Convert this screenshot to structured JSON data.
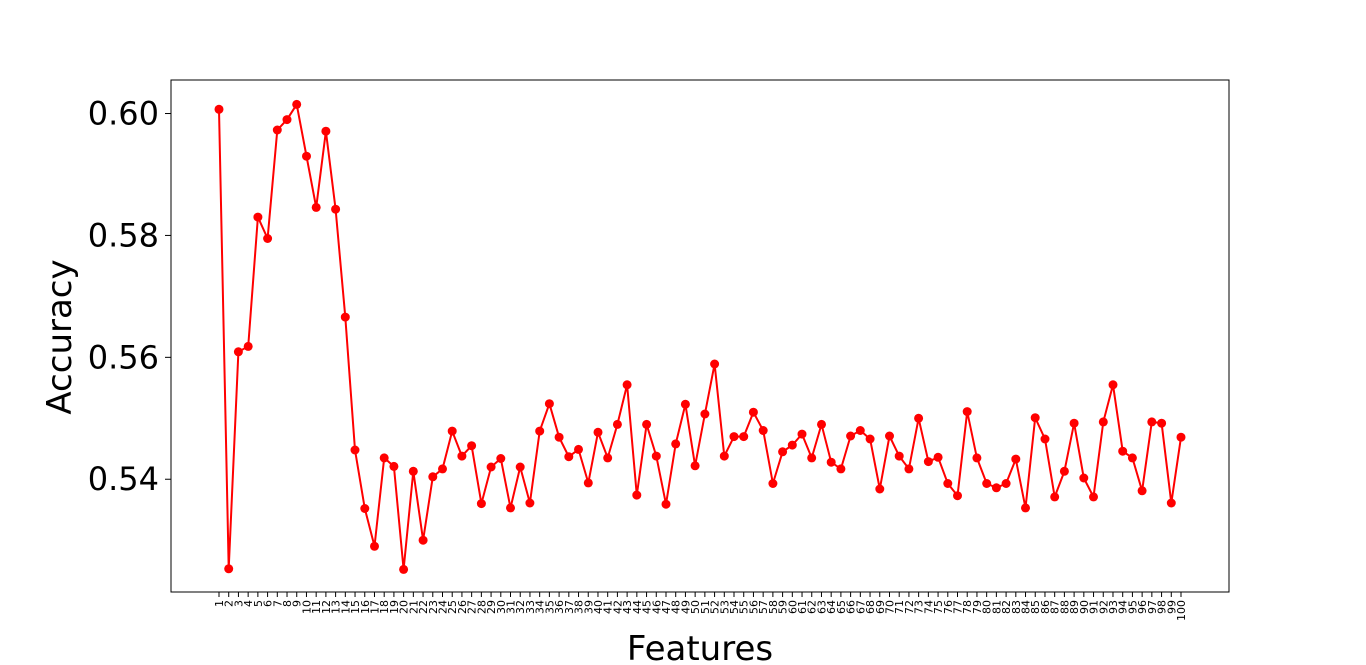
{
  "chart_data": {
    "type": "line",
    "xlabel": "Features",
    "ylabel": "Accuracy",
    "title": "",
    "ylim": [
      0.5215,
      0.6055
    ],
    "yticks": [
      "0.54",
      "0.56",
      "0.58",
      "0.60"
    ],
    "grid": false,
    "legend": "none",
    "line_color": "#ff0000",
    "marker": "circle",
    "series": [
      {
        "x": [
          1,
          2,
          3,
          4,
          5,
          6,
          7,
          8,
          9,
          10,
          11,
          12,
          13,
          14,
          15,
          16,
          17,
          18,
          19,
          20,
          21,
          22,
          23,
          24,
          25,
          26,
          27,
          28,
          29,
          30,
          31,
          32,
          33,
          34,
          35,
          36,
          37,
          38,
          39,
          40,
          41,
          42,
          43,
          44,
          45,
          46,
          47,
          48,
          49,
          50,
          51,
          52,
          53,
          54,
          55,
          56,
          57,
          58,
          59,
          60,
          61,
          62,
          63,
          64,
          65,
          66,
          67,
          68,
          69,
          70,
          71,
          72,
          73,
          74,
          75,
          76,
          77,
          78,
          79,
          80,
          81,
          82,
          83,
          84,
          85,
          86,
          87,
          88,
          89,
          90,
          91,
          92,
          93,
          94,
          95,
          96,
          97,
          98,
          99,
          100
        ],
        "values": [
          0.6007,
          0.5253,
          0.5609,
          0.5618,
          0.583,
          0.5795,
          0.5973,
          0.599,
          0.6015,
          0.593,
          0.5846,
          0.5971,
          0.5843,
          0.5666,
          0.5448,
          0.5352,
          0.529,
          0.5435,
          0.5421,
          0.5252,
          0.5413,
          0.53,
          0.5404,
          0.5417,
          0.5479,
          0.5438,
          0.5455,
          0.536,
          0.542,
          0.5434,
          0.5353,
          0.542,
          0.5361,
          0.5479,
          0.5524,
          0.5469,
          0.5437,
          0.5449,
          0.5394,
          0.5477,
          0.5435,
          0.549,
          0.5555,
          0.5374,
          0.549,
          0.5438,
          0.5359,
          0.5458,
          0.5523,
          0.5422,
          0.5507,
          0.5589,
          0.5438,
          0.547,
          0.547,
          0.551,
          0.548,
          0.5393,
          0.5445,
          0.5456,
          0.5474,
          0.5435,
          0.549,
          0.5428,
          0.5417,
          0.5471,
          0.548,
          0.5466,
          0.5384,
          0.5471,
          0.5438,
          0.5417,
          0.55,
          0.5429,
          0.5436,
          0.5393,
          0.5373,
          0.5511,
          0.5435,
          0.5393,
          0.5386,
          0.5393,
          0.5433,
          0.5353,
          0.5501,
          0.5466,
          0.5371,
          0.5413,
          0.5492,
          0.5402,
          0.5371,
          0.5494,
          0.5555,
          0.5446,
          0.5435,
          0.5381,
          0.5494,
          0.5492,
          0.5361,
          0.5469
        ]
      }
    ]
  }
}
